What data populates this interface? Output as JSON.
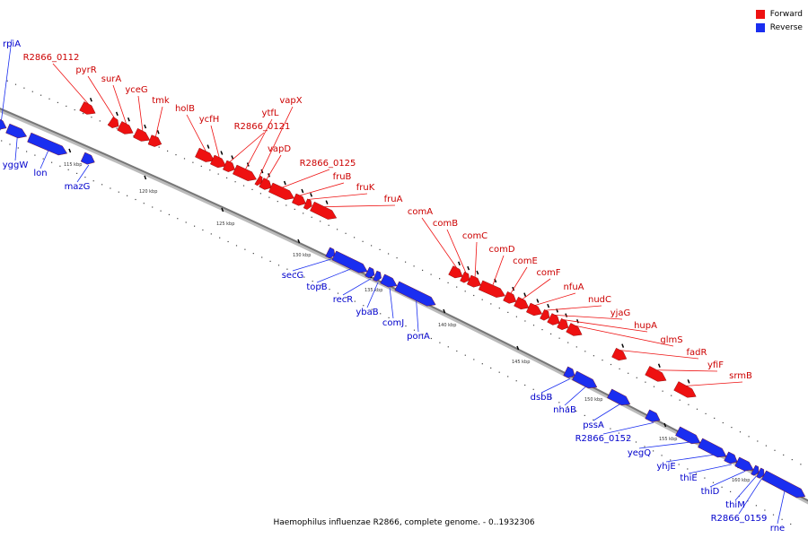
{
  "caption": "Haemophilus influenzae R2866, complete genome. - 0..1932306",
  "colors": {
    "forward": "#ee1111",
    "reverse": "#1a2ef0",
    "forward_label": "#cc0000",
    "reverse_label": "#0000cc",
    "backbone": "#777777"
  },
  "legend": [
    {
      "label": "Forward",
      "color": "#ee1111"
    },
    {
      "label": "Reverse",
      "color": "#1a2ef0"
    }
  ],
  "ticks": [
    "115 kbp",
    "120 kbp",
    "125 kbp",
    "130 kbp",
    "135 kbp",
    "140 kbp",
    "145 kbp",
    "150 kbp",
    "155 kbp",
    "160 kbp"
  ],
  "forward_genes": [
    "R2866_0112",
    "pyrR",
    "surA",
    "yceG",
    "tmk",
    "holB",
    "ycfH",
    "R2866_0121",
    "ytfL",
    "vapX",
    "vapD",
    "R2866_0125",
    "fruB",
    "fruK",
    "fruA",
    "comA",
    "comB",
    "comC",
    "comD",
    "comE",
    "comF",
    "nfuA",
    "nudC",
    "yjaG",
    "hupA",
    "glmS",
    "fadR",
    "yfiF",
    "srmB"
  ],
  "reverse_genes": [
    "rpiA",
    "yggW",
    "lon",
    "mazG",
    "secG",
    "topB",
    "recR",
    "ybaB",
    "comJ",
    "ponA",
    "dsbB",
    "nhaB",
    "pssA",
    "R2866_0152",
    "yegQ",
    "yhjE",
    "thiE",
    "thiD",
    "thiM",
    "R2866_0159",
    "rne"
  ]
}
